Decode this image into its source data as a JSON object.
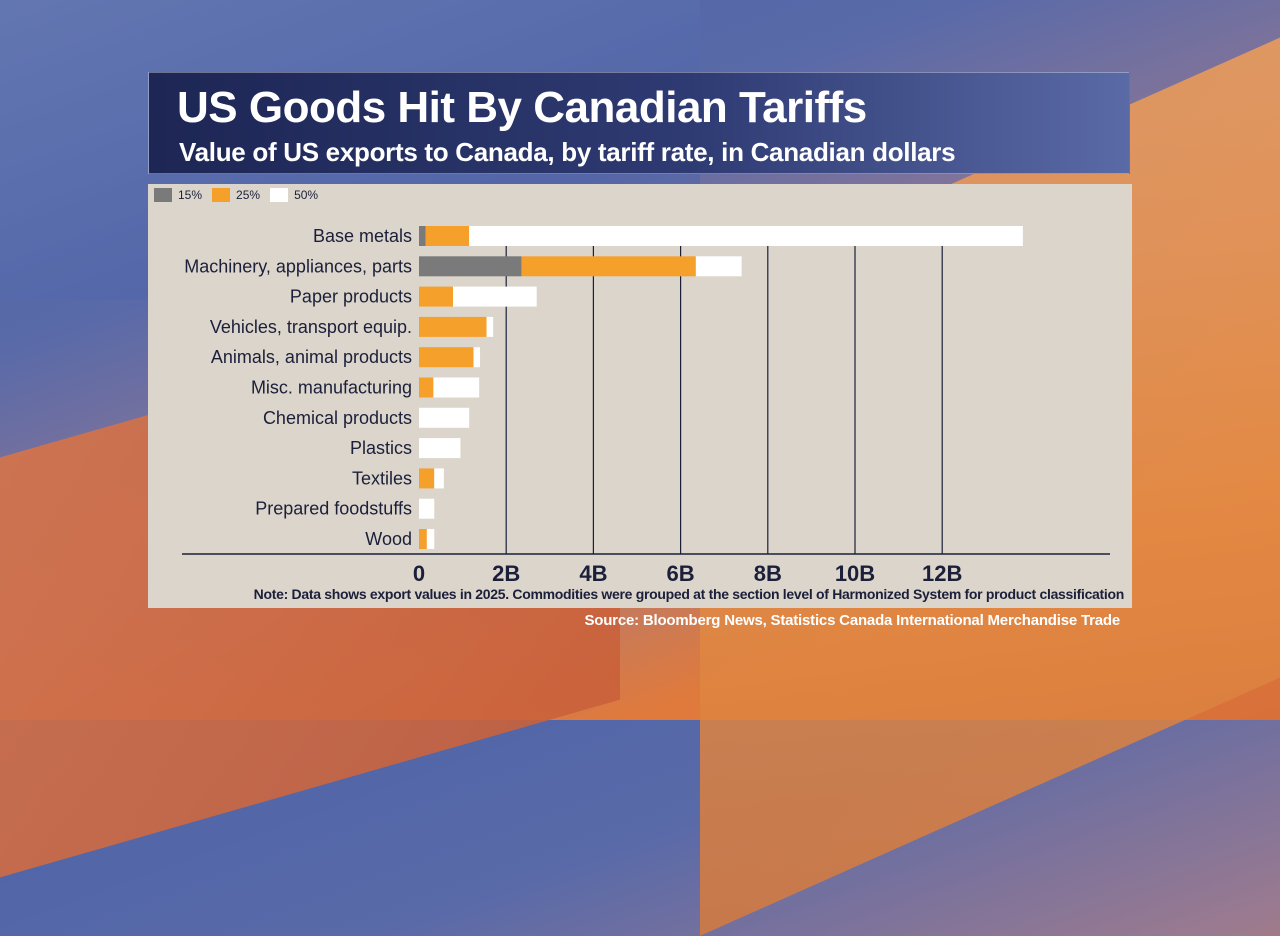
{
  "title": "US Goods Hit By Canadian Tariffs",
  "subtitle": "Value of US exports to Canada, by tariff rate, in Canadian dollars",
  "legend": [
    {
      "label": "15%",
      "color": "#7a7a7a"
    },
    {
      "label": "25%",
      "color": "#f6a02c"
    },
    {
      "label": "50%",
      "color": "#ffffff"
    }
  ],
  "note": "Note: Data shows export values in 2025. Commodities were grouped at the section level of Harmonized System for product classification",
  "source": "Source: Bloomberg News, Statistics Canada International Merchandise Trade",
  "chart_data": {
    "type": "bar",
    "orientation": "horizontal",
    "stacked": true,
    "title": "US Goods Hit By Canadian Tariffs",
    "subtitle": "Value of US exports to Canada, by tariff rate, in Canadian dollars",
    "categories": [
      "Base metals",
      "Machinery, appliances, parts",
      "Paper products",
      "Vehicles, transport equip.",
      "Animals, animal products",
      "Misc. manufacturing",
      "Chemical products",
      "Plastics",
      "Textiles",
      "Prepared foodstuffs",
      "Wood"
    ],
    "series": [
      {
        "name": "15%",
        "color": "#7a7a7a",
        "values": [
          0.15,
          2.35,
          0,
          0,
          0,
          0,
          0,
          0,
          0,
          0,
          0
        ]
      },
      {
        "name": "25%",
        "color": "#f6a02c",
        "values": [
          1.0,
          4.0,
          0.78,
          1.55,
          1.25,
          0.33,
          0,
          0,
          0.35,
          0,
          0.18
        ]
      },
      {
        "name": "50%",
        "color": "#ffffff",
        "values": [
          12.7,
          1.05,
          1.92,
          0.15,
          0.15,
          1.05,
          1.15,
          0.95,
          0.22,
          0.35,
          0.17
        ]
      }
    ],
    "x_ticks": [
      "0",
      "2B",
      "4B",
      "6B",
      "8B",
      "10B",
      "12B"
    ],
    "xlim": [
      0,
      14
    ],
    "xlabel": "",
    "ylabel": "",
    "grid": true,
    "legend_position": "top-left"
  }
}
